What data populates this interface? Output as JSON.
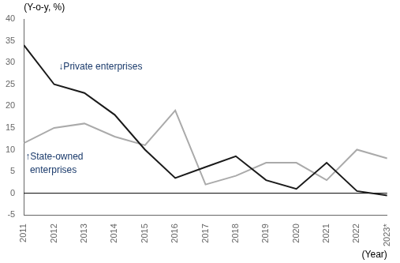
{
  "chart_data": {
    "type": "line",
    "ylabel": "(Y-o-y, %)",
    "xlabel": "(Year)",
    "x": [
      2011,
      2012,
      2013,
      2014,
      2015,
      2016,
      2017,
      2018,
      2019,
      2020,
      2021,
      2022,
      2023
    ],
    "series": [
      {
        "name": "Private enterprises",
        "color": "#1a1a1a",
        "values": [
          34,
          25,
          23,
          18,
          10,
          3.5,
          6,
          8.5,
          3,
          1,
          7,
          0.5,
          -0.5
        ]
      },
      {
        "name": "State-owned enterprises",
        "color": "#aaaaaa",
        "values": [
          11.5,
          15,
          16,
          13,
          11,
          19,
          2,
          4,
          7,
          7,
          3,
          10,
          8
        ]
      }
    ],
    "xlim": [
      2011,
      2023
    ],
    "xticks": [
      2011,
      2012,
      2013,
      2014,
      2015,
      2016,
      2017,
      2018,
      2019,
      2020,
      2021,
      2022,
      {
        "value": 2023,
        "label": "2023*"
      }
    ],
    "ylim": [
      -5,
      40
    ],
    "yticks": [
      -5,
      0,
      5,
      10,
      15,
      20,
      25,
      30,
      35,
      40
    ],
    "hlines": [
      {
        "y": 0,
        "color": "#000000"
      }
    ],
    "annotations": [
      {
        "text": "↓Private enterprises",
        "x": 2012.15,
        "y": 30,
        "color": "#1a3a6b"
      },
      {
        "text": "↑State-owned",
        "x": 2011.05,
        "y": 9.5,
        "color": "#1a3a6b"
      },
      {
        "text": "enterprises",
        "x": 2011.2,
        "y": 6.3,
        "color": "#1a3a6b"
      }
    ],
    "grid": false,
    "legend": false
  }
}
